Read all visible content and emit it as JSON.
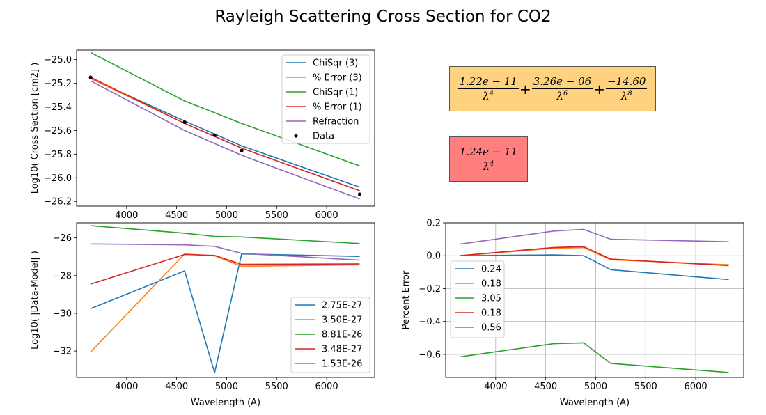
{
  "figure": {
    "title": "Rayleigh Scattering Cross Section for CO2"
  },
  "formulas": {
    "fit3": [
      {
        "num": "1.22e − 11",
        "den": "λ",
        "pow": "4"
      },
      {
        "num": "3.26e − 06",
        "den": "λ",
        "pow": "6"
      },
      {
        "num": "−14.60",
        "den": "λ",
        "pow": "8"
      }
    ],
    "fit1": [
      {
        "num": "1.24e − 11",
        "den": "λ",
        "pow": "4"
      }
    ],
    "colors": {
      "fit3_bg": "#ffd27f",
      "fit1_bg": "#ff7f7f"
    }
  },
  "chart_data": [
    {
      "id": "cross_section",
      "type": "line",
      "title": "",
      "xlabel": "",
      "ylabel": "Log10( Cross Section [cm2] )",
      "xlim": [
        3500,
        6480
      ],
      "ylim": [
        -26.24,
        -24.92
      ],
      "xticks": [
        4000,
        4500,
        5000,
        5500,
        6000
      ],
      "yticks": [
        -25.0,
        -25.2,
        -25.4,
        -25.6,
        -25.8,
        -26.0,
        -26.2
      ],
      "ytick_labels": [
        "−25.0",
        "−25.2",
        "−25.4",
        "−25.6",
        "−25.8",
        "−26.0",
        "−26.2"
      ],
      "legend_position": "top-right",
      "x": [
        3640,
        4580,
        4880,
        5150,
        6330
      ],
      "series": [
        {
          "name": "ChiSqr (3)",
          "color": "#1f77b4",
          "values": [
            -25.16,
            -25.52,
            -25.63,
            -25.73,
            -26.08
          ]
        },
        {
          "name": "% Error (3)",
          "color": "#ff7f0e",
          "values": [
            -25.16,
            -25.54,
            -25.65,
            -25.75,
            -26.11
          ]
        },
        {
          "name": "ChiSqr (1)",
          "color": "#2ca02c",
          "values": [
            -24.94,
            -25.35,
            -25.45,
            -25.54,
            -25.9
          ]
        },
        {
          "name": "% Error (1)",
          "color": "#d62728",
          "values": [
            -25.15,
            -25.54,
            -25.65,
            -25.75,
            -26.11
          ]
        },
        {
          "name": "Refraction",
          "color": "#9467bd",
          "values": [
            -25.18,
            -25.6,
            -25.71,
            -25.81,
            -26.18
          ]
        }
      ],
      "points": {
        "name": "Data",
        "color": "#000000",
        "x": [
          3640,
          4580,
          4880,
          5150,
          6330
        ],
        "y": [
          -25.15,
          -25.53,
          -25.64,
          -25.77,
          -26.14
        ]
      }
    },
    {
      "id": "log_residual",
      "type": "line",
      "title": "",
      "xlabel": "Wavelength (A)",
      "ylabel": "Log10( |Data-Model| )",
      "xlim": [
        3500,
        6480
      ],
      "ylim": [
        -33.4,
        -25.2
      ],
      "xticks": [
        4000,
        4500,
        5000,
        5500,
        6000
      ],
      "yticks": [
        -26,
        -28,
        -30,
        -32
      ],
      "ytick_labels": [
        "−26",
        "−28",
        "−30",
        "−32"
      ],
      "legend_position": "lower-right",
      "x": [
        3640,
        4580,
        4880,
        5150,
        6330
      ],
      "series": [
        {
          "name": "2.75E-27",
          "color": "#1f77b4",
          "values": [
            -29.75,
            -27.75,
            -33.15,
            -26.85,
            -26.98
          ]
        },
        {
          "name": "3.50E-27",
          "color": "#ff7f0e",
          "values": [
            -32.05,
            -26.85,
            -26.95,
            -27.5,
            -27.43
          ]
        },
        {
          "name": "8.81E-26",
          "color": "#2ca02c",
          "values": [
            -25.35,
            -25.75,
            -25.92,
            -25.95,
            -26.3
          ]
        },
        {
          "name": "3.48E-27",
          "color": "#d62728",
          "values": [
            -28.45,
            -26.88,
            -26.93,
            -27.4,
            -27.38
          ]
        },
        {
          "name": "1.53E-26",
          "color": "#9467bd",
          "values": [
            -26.32,
            -26.37,
            -26.45,
            -26.82,
            -27.18
          ]
        }
      ]
    },
    {
      "id": "percent_error",
      "type": "line",
      "title": "",
      "xlabel": "Wavelength (A)",
      "ylabel": "Percent Error",
      "xlim": [
        3500,
        6480
      ],
      "ylim": [
        -0.74,
        0.2
      ],
      "xticks": [
        4000,
        4500,
        5000,
        5500,
        6000
      ],
      "yticks": [
        0.2,
        0.0,
        -0.2,
        -0.4,
        -0.6
      ],
      "ytick_labels": [
        "0.2",
        "0.0",
        "−0.2",
        "−0.4",
        "−0.6"
      ],
      "grid": true,
      "legend_position": "center-left",
      "x": [
        3640,
        4580,
        4880,
        5150,
        6330
      ],
      "series": [
        {
          "name": "0.24",
          "color": "#1f77b4",
          "values": [
            0.0,
            0.005,
            0.0,
            -0.085,
            -0.145
          ]
        },
        {
          "name": "0.18",
          "color": "#ff7f0e",
          "values": [
            0.0,
            0.045,
            0.05,
            -0.025,
            -0.055
          ]
        },
        {
          "name": "3.05",
          "color": "#2ca02c",
          "values": [
            -0.615,
            -0.535,
            -0.53,
            -0.655,
            -0.71
          ]
        },
        {
          "name": "0.18",
          "color": "#d62728",
          "values": [
            0.0,
            0.05,
            0.055,
            -0.02,
            -0.06
          ]
        },
        {
          "name": "0.56",
          "color": "#9467bd",
          "values": [
            0.07,
            0.15,
            0.16,
            0.1,
            0.085
          ]
        }
      ]
    }
  ]
}
